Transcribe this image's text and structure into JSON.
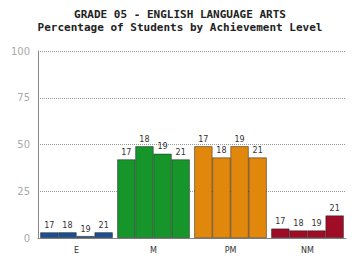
{
  "chart_data": {
    "type": "bar",
    "title": "GRADE 05 - ENGLISH LANGUAGE ARTS",
    "subtitle": "Percentage of Students by Achievement Level",
    "categories": [
      "E",
      "M",
      "PM",
      "NM"
    ],
    "colors": [
      "#1b4f8f",
      "#16962a",
      "#e0870c",
      "#9e0c25"
    ],
    "series": [
      {
        "name": "17",
        "values": [
          3,
          42,
          49,
          5
        ]
      },
      {
        "name": "18",
        "values": [
          3,
          49,
          43,
          4
        ]
      },
      {
        "name": "19",
        "values": [
          1,
          45,
          49,
          4
        ]
      },
      {
        "name": "21",
        "values": [
          3,
          42,
          43,
          12
        ]
      }
    ],
    "ylim": [
      0,
      100
    ],
    "yticks": [
      0,
      25,
      50,
      75,
      100
    ],
    "grid": true
  }
}
